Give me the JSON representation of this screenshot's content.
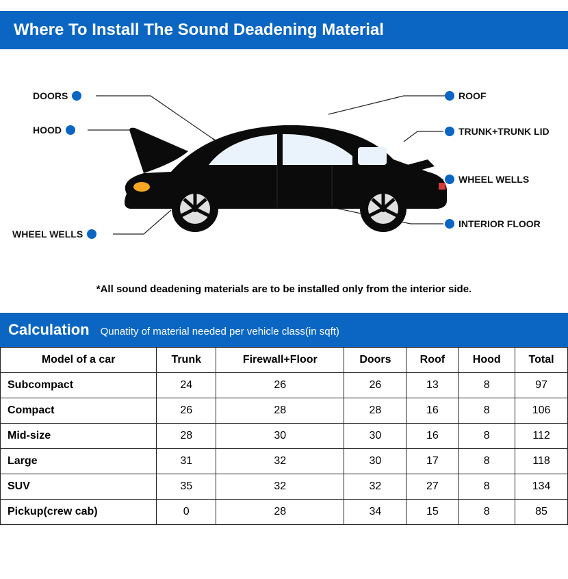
{
  "header": {
    "title": "Where To Install The Sound Deadening Material"
  },
  "colors": {
    "primary": "#0a66c2",
    "car_body": "#0b0b0b",
    "headlight": "#f6a623",
    "taillight": "#d23b3b",
    "wheel_rim": "#e0e0e0",
    "leader_line": "#222222",
    "table_border": "#222222",
    "text": "#111111",
    "background": "#ffffff"
  },
  "labels": {
    "doors": "DOORS",
    "hood": "HOOD",
    "wheel_wells_left": "WHEEL WELLS",
    "roof": "ROOF",
    "trunk": "TRUNK+TRUNK LID",
    "wheel_wells_right": "WHEEL WELLS",
    "interior_floor": "INTERIOR FLOOR"
  },
  "footnote": "*All sound deadening materials are to be installed only from the interior side.",
  "calc": {
    "title": "Calculation",
    "subtitle": "Qunatity of material needed per vehicle class(in sqft)",
    "columns": [
      "Model of a car",
      "Trunk",
      "Firewall+Floor",
      "Doors",
      "Roof",
      "Hood",
      "Total"
    ],
    "rows": [
      [
        "Subcompact",
        "24",
        "26",
        "26",
        "13",
        "8",
        "97"
      ],
      [
        "Compact",
        "26",
        "28",
        "28",
        "16",
        "8",
        "106"
      ],
      [
        "Mid-size",
        "28",
        "30",
        "30",
        "16",
        "8",
        "112"
      ],
      [
        "Large",
        "31",
        "32",
        "30",
        "17",
        "8",
        "118"
      ],
      [
        "SUV",
        "35",
        "32",
        "32",
        "27",
        "8",
        "134"
      ],
      [
        "Pickup(crew cab)",
        "0",
        "28",
        "34",
        "15",
        "8",
        "85"
      ]
    ]
  },
  "diagram": {
    "car_viewbox": "0 0 520 200",
    "car_width": 520,
    "car_height": 200
  }
}
